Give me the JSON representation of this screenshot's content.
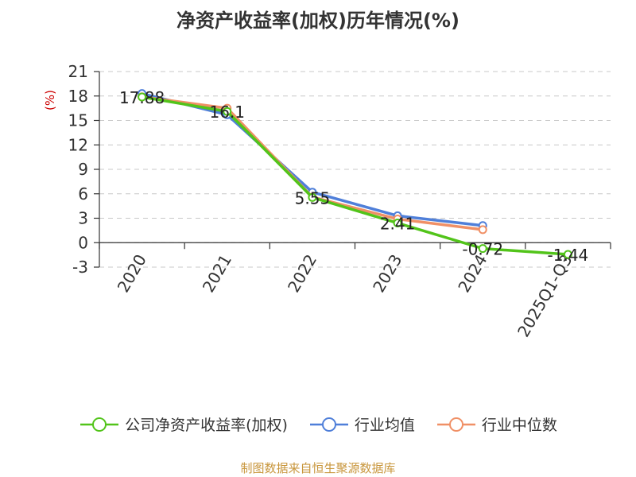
{
  "title": "净资产收益率(加权)历年情况(%)",
  "source": "制图数据来自恒生聚源数据库",
  "chart_data": {
    "type": "line",
    "title": "净资产收益率(加权)历年情况(%)",
    "ylabel": "(%)",
    "categories": [
      "2020",
      "2021",
      "2022",
      "2023",
      "2024",
      "2025Q1-Q3"
    ],
    "ylim": [
      -3,
      21
    ],
    "yticks": [
      21,
      18,
      15,
      12,
      9,
      6,
      3,
      0,
      -3
    ],
    "grid": true,
    "legend_position": "bottom",
    "series": [
      {
        "name": "公司净资产收益率(加权)",
        "color": "#52c41a",
        "values": [
          17.88,
          16.1,
          5.55,
          2.41,
          -0.72,
          -1.44
        ],
        "labels": [
          "17.88",
          "16.1",
          "5.55",
          "2.41",
          "-0.72",
          "-1.44"
        ]
      },
      {
        "name": "行业均值",
        "color": "#4f7fd9",
        "values": [
          18.3,
          15.7,
          6.2,
          3.3,
          2.1,
          null
        ]
      },
      {
        "name": "行业中位数",
        "color": "#f09066",
        "values": [
          17.9,
          16.5,
          5.6,
          2.9,
          1.6,
          null
        ]
      }
    ]
  }
}
